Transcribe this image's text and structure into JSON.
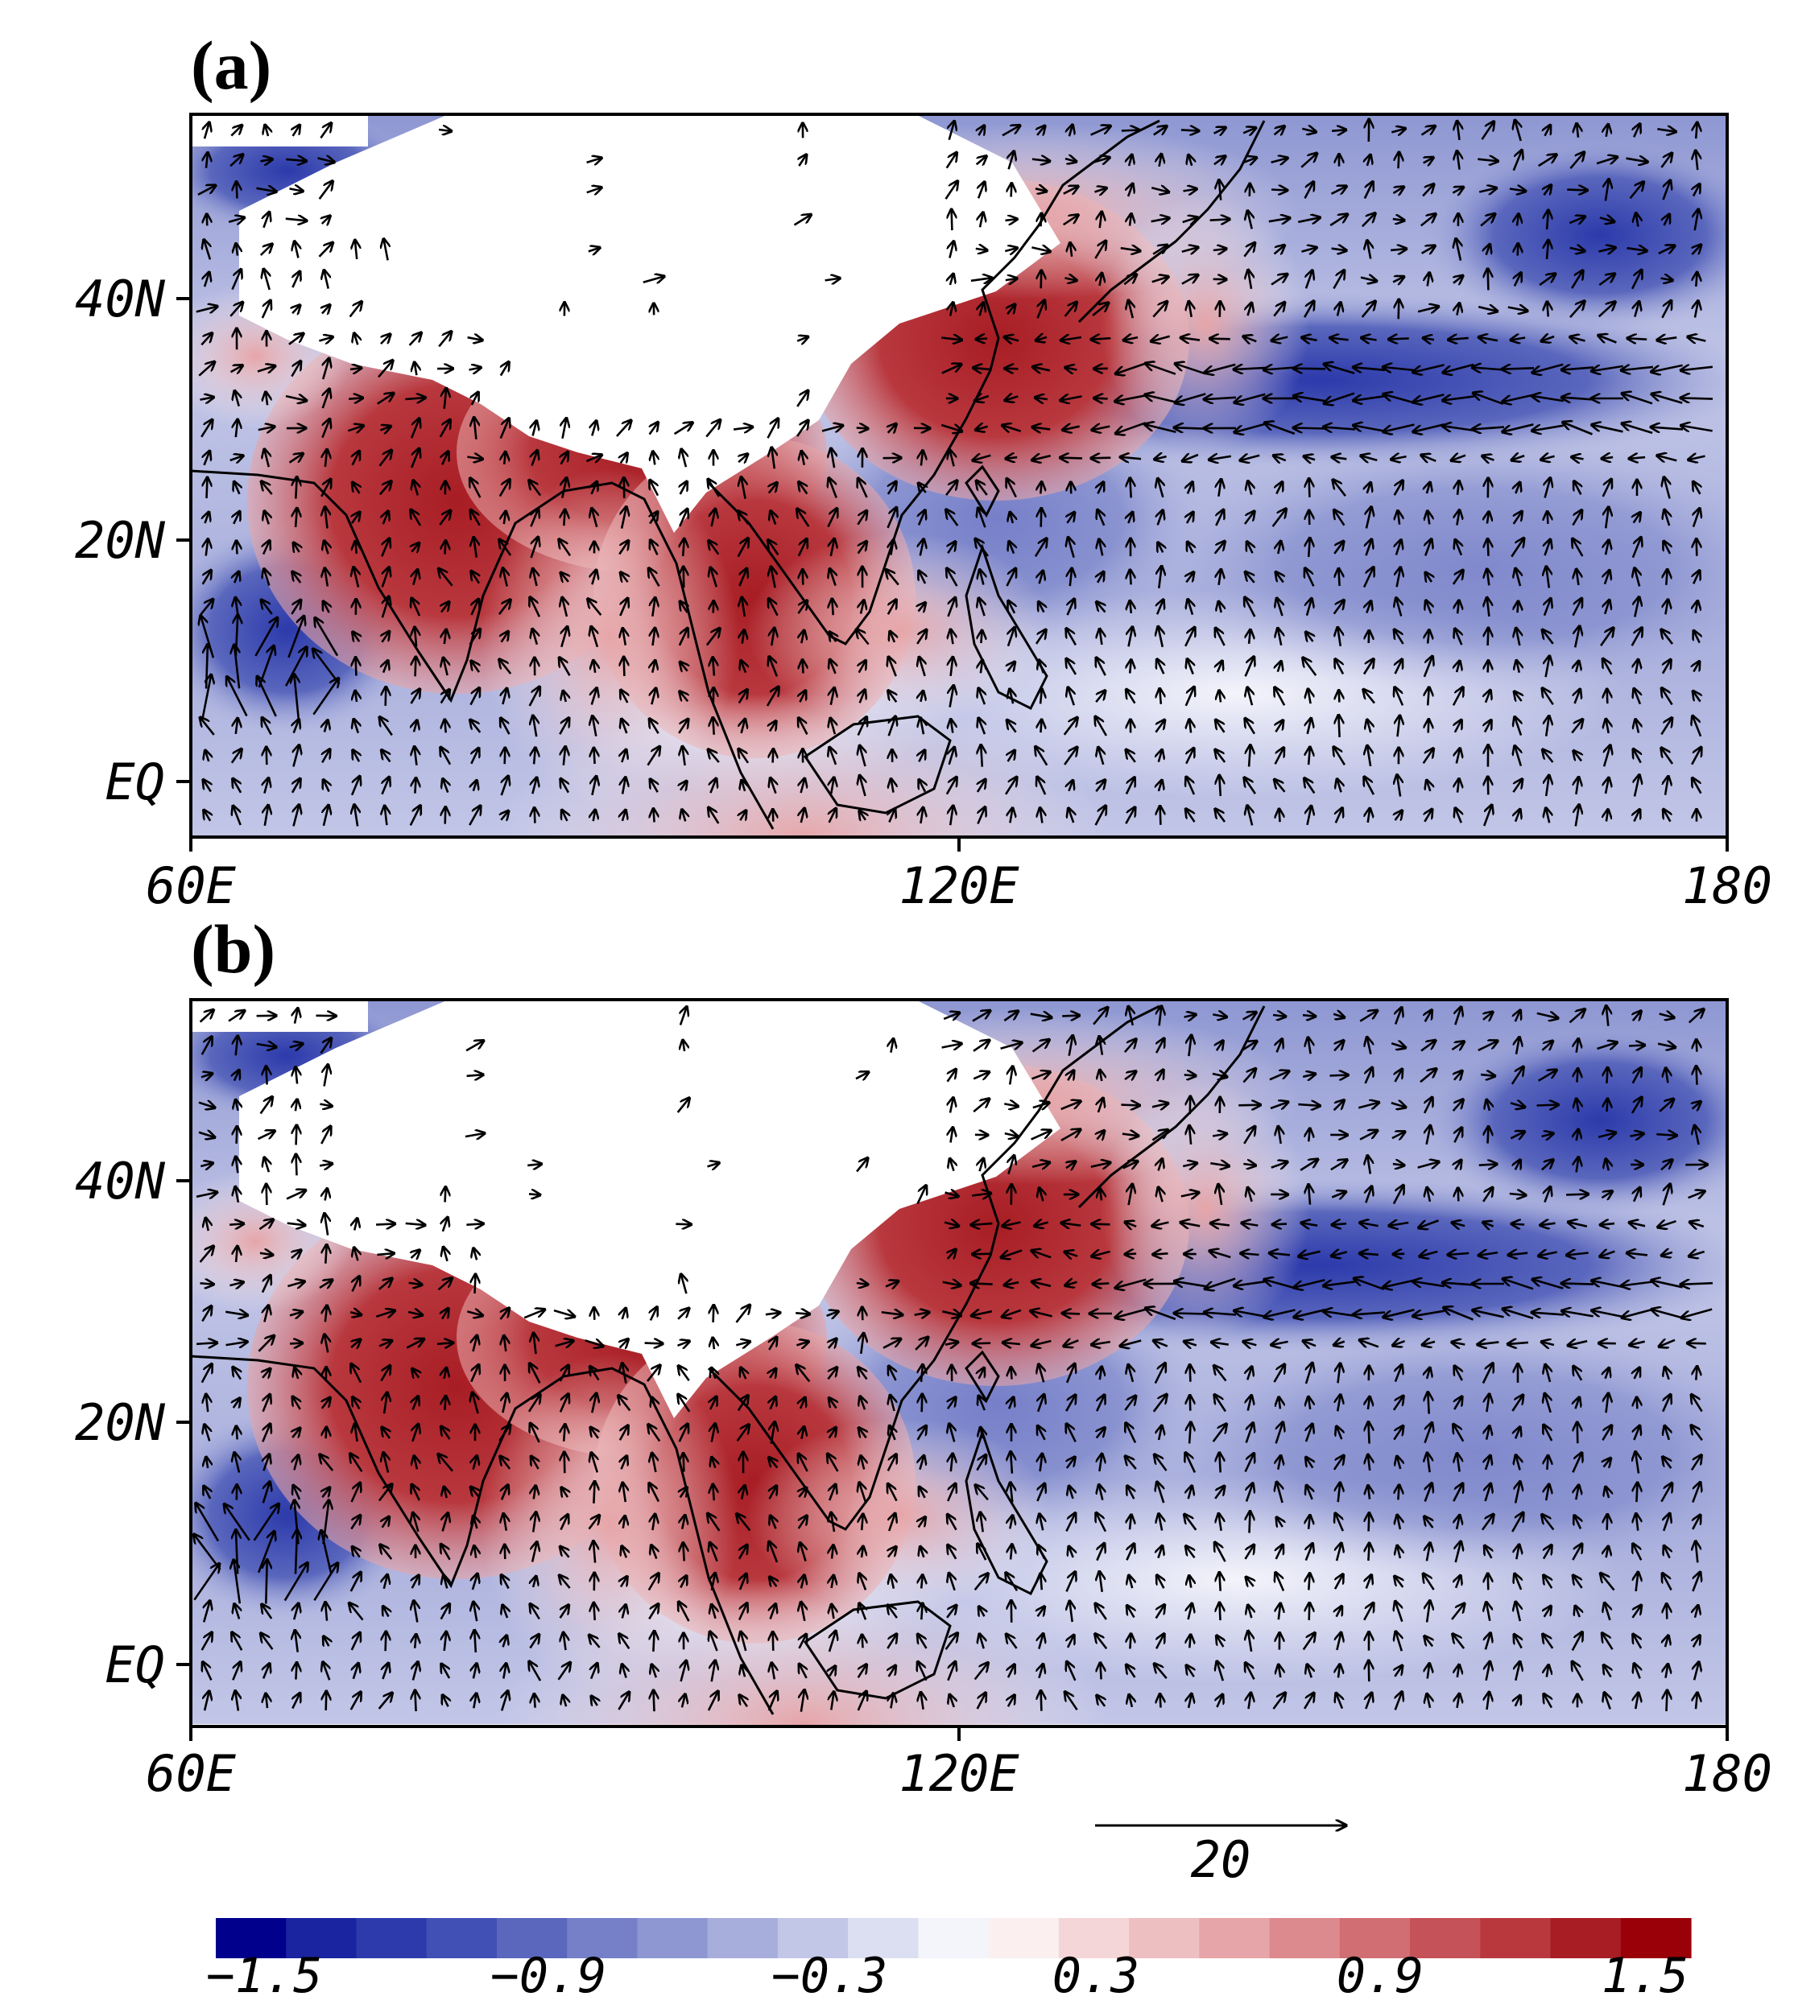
{
  "panels": [
    {
      "label": "(a)",
      "y_ticks": [
        "40N",
        "20N",
        "EQ"
      ],
      "x_ticks": [
        "60E",
        "120E",
        "180"
      ]
    },
    {
      "label": "(b)",
      "y_ticks": [
        "40N",
        "20N",
        "EQ"
      ],
      "x_ticks": [
        "60E",
        "120E",
        "180"
      ]
    }
  ],
  "reference_vector": {
    "value": "20"
  },
  "colorbar": {
    "labels": [
      "−1.5",
      "−0.9",
      "−0.3",
      "0.3",
      "0.9",
      "1.5"
    ],
    "colors": [
      "#00008c",
      "#1a24a0",
      "#2c3aab",
      "#4150b4",
      "#5a67bd",
      "#7580c8",
      "#8e97d2",
      "#a8aedc",
      "#c2c6e7",
      "#dcdff1",
      "#f4f4fb",
      "#fbeff0",
      "#f5d6d8",
      "#eebfc1",
      "#e6a5a8",
      "#dc8a8e",
      "#d06e73",
      "#c45258",
      "#b8383e",
      "#a81d24",
      "#990008"
    ],
    "colors_role": "diverging blue-white-red scale"
  },
  "chart_data": {
    "type": "map",
    "panels": [
      "(a)",
      "(b)"
    ],
    "longitude_ticks": [
      "60E",
      "120E",
      "180"
    ],
    "latitude_ticks": [
      "40N",
      "20N",
      "EQ"
    ],
    "lon_range": [
      60,
      180
    ],
    "lat_range": [
      -5,
      55
    ],
    "shading_scale": [
      -1.5,
      1.5
    ],
    "colorbar_ticks": [
      -1.5,
      -0.9,
      -0.3,
      0.3,
      0.9,
      1.5
    ],
    "vector_reference": 20,
    "masked_region": "Tibetan Plateau / high terrain (white)"
  }
}
